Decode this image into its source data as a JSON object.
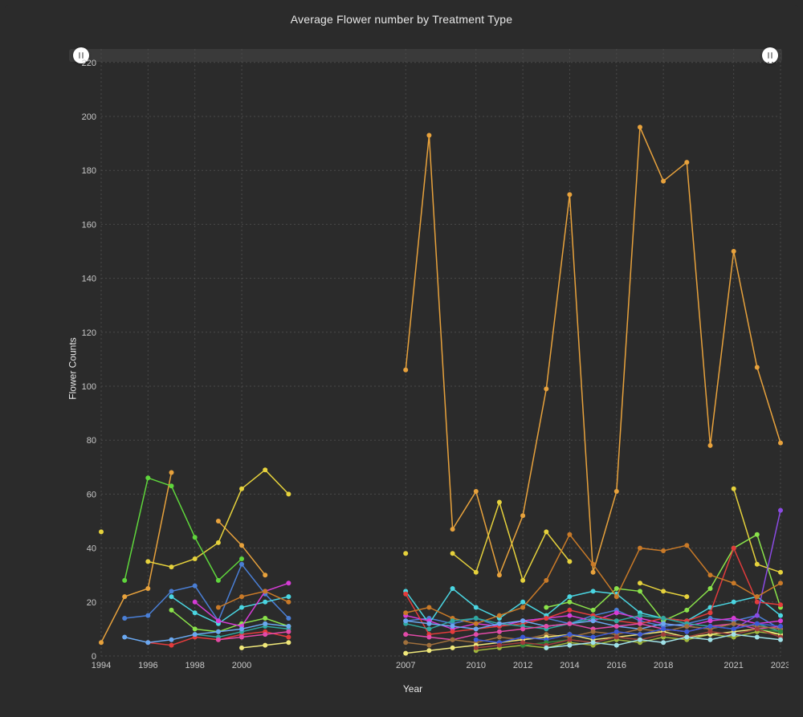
{
  "title": "Average Flower number by Treatment Type",
  "chart": {
    "type": "line",
    "xlabel": "Year",
    "ylabel": "Flower Counts",
    "title_fontsize": 14,
    "label_fontsize": 12,
    "tick_fontsize": 11,
    "background_color": "#2b2b2b",
    "grid_color": "#4a4a4a",
    "grid_dash": "2 3",
    "text_color": "#e8e8e8",
    "tick_text_color": "#c8c8c8",
    "marker_radius": 3,
    "line_width": 1.5,
    "ylim": [
      0,
      225
    ],
    "ytick_step": 20,
    "yticks": [
      0,
      20,
      40,
      60,
      80,
      100,
      120,
      140,
      160,
      180,
      200,
      220
    ],
    "years": [
      1994,
      1995,
      1996,
      1997,
      1998,
      1999,
      2000,
      2001,
      2002,
      2003,
      2004,
      2005,
      2006,
      2007,
      2008,
      2009,
      2010,
      2011,
      2012,
      2013,
      2014,
      2015,
      2016,
      2017,
      2018,
      2019,
      2020,
      2021,
      2022,
      2023
    ],
    "xtick_years": [
      1994,
      1996,
      1998,
      2000,
      2007,
      2010,
      2012,
      2014,
      2016,
      2018,
      2021,
      2023
    ],
    "slider": {
      "track_color": "#3a3a3a",
      "handle_color": "#ffffff",
      "left_pos": 0.006,
      "right_pos": 0.994
    },
    "series": [
      {
        "id": "orange-high",
        "color": "#e8a23c",
        "data": [
          5,
          22,
          25,
          68,
          null,
          50,
          41,
          30,
          null,
          null,
          null,
          null,
          null,
          106,
          193,
          47,
          61,
          30,
          52,
          99,
          171,
          31,
          61,
          196,
          176,
          183,
          78,
          150,
          107,
          79
        ]
      },
      {
        "id": "yellow-mid",
        "color": "#e6d23c",
        "data": [
          46,
          null,
          35,
          33,
          36,
          42,
          62,
          69,
          60,
          null,
          null,
          null,
          null,
          38,
          null,
          38,
          31,
          57,
          28,
          46,
          35,
          null,
          null,
          27,
          24,
          22,
          null,
          62,
          34,
          31
        ]
      },
      {
        "id": "green-bright",
        "color": "#5fd63c",
        "data": [
          null,
          28,
          66,
          63,
          44,
          28,
          36,
          null,
          null,
          null,
          null,
          null,
          null,
          null,
          null,
          null,
          null,
          null,
          null,
          null,
          null,
          null,
          null,
          null,
          null,
          null,
          null,
          null,
          null,
          null
        ]
      },
      {
        "id": "green-lime",
        "color": "#8ae24a",
        "data": [
          null,
          null,
          null,
          17,
          10,
          9,
          12,
          14,
          11,
          null,
          null,
          null,
          null,
          null,
          null,
          null,
          null,
          null,
          null,
          18,
          20,
          17,
          25,
          24,
          13,
          17,
          25,
          40,
          45,
          18
        ]
      },
      {
        "id": "blue-steel",
        "color": "#4a7fd6",
        "data": [
          null,
          14,
          15,
          24,
          26,
          13,
          34,
          23,
          14,
          null,
          null,
          null,
          null,
          13,
          14,
          12,
          14,
          11,
          13,
          14,
          12,
          15,
          17,
          13,
          11,
          12,
          14,
          13,
          15,
          10
        ]
      },
      {
        "id": "cyan",
        "color": "#4ad6e2",
        "data": [
          null,
          null,
          null,
          22,
          16,
          12,
          18,
          20,
          22,
          null,
          null,
          null,
          null,
          24,
          12,
          25,
          18,
          14,
          20,
          15,
          22,
          24,
          23,
          16,
          14,
          13,
          18,
          20,
          22,
          15
        ]
      },
      {
        "id": "magenta",
        "color": "#d63cd6",
        "data": [
          null,
          null,
          null,
          null,
          20,
          13,
          11,
          24,
          27,
          null,
          null,
          null,
          null,
          15,
          13,
          10,
          12,
          11,
          13,
          14,
          15,
          13,
          16,
          14,
          12,
          11,
          13,
          14,
          12,
          13
        ]
      },
      {
        "id": "red",
        "color": "#e23c3c",
        "data": [
          null,
          null,
          5,
          4,
          7,
          6,
          8,
          9,
          7,
          null,
          null,
          null,
          null,
          23,
          8,
          9,
          10,
          11,
          12,
          14,
          17,
          15,
          13,
          12,
          14,
          13,
          16,
          40,
          20,
          19
        ]
      },
      {
        "id": "purple",
        "color": "#8a4ae2",
        "data": [
          null,
          null,
          null,
          null,
          null,
          null,
          null,
          null,
          null,
          null,
          null,
          null,
          null,
          null,
          null,
          null,
          null,
          null,
          null,
          null,
          null,
          null,
          null,
          null,
          null,
          null,
          null,
          10,
          15,
          54
        ]
      },
      {
        "id": "orange-dark",
        "color": "#c97a28",
        "data": [
          null,
          null,
          null,
          null,
          null,
          18,
          22,
          24,
          20,
          null,
          null,
          null,
          null,
          16,
          18,
          14,
          12,
          15,
          18,
          28,
          45,
          34,
          22,
          40,
          39,
          41,
          30,
          27,
          22,
          27
        ]
      },
      {
        "id": "teal",
        "color": "#2fa8a0",
        "data": [
          null,
          null,
          null,
          null,
          8,
          7,
          9,
          11,
          10,
          null,
          null,
          null,
          null,
          12,
          10,
          13,
          14,
          12,
          11,
          10,
          12,
          14,
          13,
          15,
          14,
          12,
          11,
          10,
          12,
          9
        ]
      },
      {
        "id": "blue-light",
        "color": "#6aa8f0",
        "data": [
          null,
          7,
          5,
          6,
          8,
          9,
          10,
          12,
          11,
          null,
          null,
          null,
          null,
          13,
          12,
          11,
          10,
          12,
          13,
          11,
          12,
          13,
          11,
          10,
          12,
          11,
          10,
          12,
          11,
          10
        ]
      },
      {
        "id": "green-olive",
        "color": "#a0b83c",
        "data": [
          null,
          null,
          null,
          null,
          null,
          null,
          null,
          null,
          null,
          null,
          null,
          null,
          null,
          null,
          null,
          null,
          2,
          3,
          4,
          3,
          5,
          4,
          6,
          5,
          7,
          6,
          8,
          7,
          9,
          8
        ]
      },
      {
        "id": "pink",
        "color": "#e24aa8",
        "data": [
          null,
          null,
          null,
          null,
          null,
          6,
          7,
          8,
          9,
          null,
          null,
          null,
          null,
          8,
          7,
          6,
          8,
          9,
          10,
          11,
          12,
          10,
          11,
          12,
          10,
          9,
          11,
          12,
          10,
          11
        ]
      },
      {
        "id": "brown",
        "color": "#a0703c",
        "data": [
          null,
          null,
          null,
          null,
          null,
          null,
          null,
          null,
          null,
          null,
          null,
          null,
          null,
          5,
          4,
          6,
          5,
          7,
          6,
          8,
          7,
          9,
          8,
          10,
          9,
          11,
          10,
          12,
          11,
          10
        ]
      },
      {
        "id": "yellow-pale",
        "color": "#f0e87a",
        "data": [
          null,
          null,
          null,
          null,
          null,
          null,
          3,
          4,
          5,
          null,
          null,
          null,
          null,
          1,
          2,
          3,
          4,
          5,
          6,
          7,
          8,
          6,
          7,
          8,
          9,
          7,
          8,
          9,
          10,
          8
        ]
      },
      {
        "id": "blue-navy",
        "color": "#3c5ad6",
        "data": [
          null,
          null,
          null,
          null,
          null,
          null,
          null,
          null,
          null,
          null,
          null,
          null,
          null,
          null,
          null,
          null,
          6,
          5,
          7,
          6,
          8,
          7,
          9,
          8,
          10,
          9,
          11,
          10,
          12,
          11
        ]
      },
      {
        "id": "green-dark",
        "color": "#2f8a3c",
        "data": [
          null,
          null,
          null,
          null,
          null,
          null,
          null,
          null,
          null,
          null,
          null,
          null,
          null,
          null,
          null,
          null,
          null,
          null,
          4,
          5,
          6,
          5,
          7,
          6,
          8,
          7,
          9,
          8,
          10,
          9
        ]
      },
      {
        "id": "red-dark",
        "color": "#a03c3c",
        "data": [
          null,
          null,
          null,
          null,
          null,
          null,
          null,
          null,
          null,
          null,
          null,
          null,
          null,
          null,
          null,
          null,
          3,
          4,
          5,
          4,
          6,
          5,
          7,
          6,
          8,
          7,
          9,
          8,
          10,
          7
        ]
      },
      {
        "id": "cyan-pale",
        "color": "#a0e2e8",
        "data": [
          null,
          null,
          null,
          null,
          null,
          null,
          null,
          null,
          null,
          null,
          null,
          null,
          null,
          null,
          null,
          null,
          null,
          null,
          null,
          3,
          4,
          5,
          4,
          6,
          5,
          7,
          6,
          8,
          7,
          6
        ]
      }
    ]
  }
}
